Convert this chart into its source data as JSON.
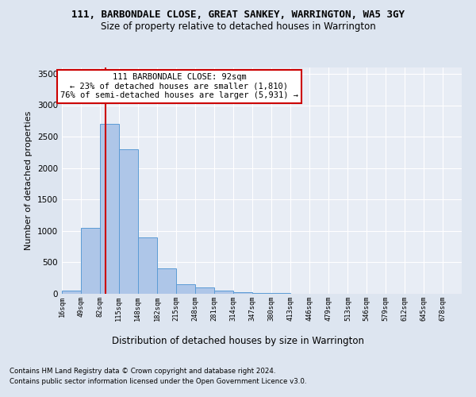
{
  "title1": "111, BARBONDALE CLOSE, GREAT SANKEY, WARRINGTON, WA5 3GY",
  "title2": "Size of property relative to detached houses in Warrington",
  "xlabel": "Distribution of detached houses by size in Warrington",
  "ylabel": "Number of detached properties",
  "bin_labels": [
    "16sqm",
    "49sqm",
    "82sqm",
    "115sqm",
    "148sqm",
    "182sqm",
    "215sqm",
    "248sqm",
    "281sqm",
    "314sqm",
    "347sqm",
    "380sqm",
    "413sqm",
    "446sqm",
    "479sqm",
    "513sqm",
    "546sqm",
    "579sqm",
    "612sqm",
    "645sqm",
    "678sqm"
  ],
  "bin_edges": [
    16,
    49,
    82,
    115,
    148,
    182,
    215,
    248,
    281,
    314,
    347,
    380,
    413,
    446,
    479,
    513,
    546,
    579,
    612,
    645,
    678
  ],
  "bar_heights": [
    50,
    1050,
    2700,
    2300,
    900,
    400,
    150,
    100,
    50,
    30,
    15,
    8,
    5,
    3,
    2,
    1,
    0,
    0,
    0,
    0
  ],
  "bar_color": "#aec6e8",
  "bar_edgecolor": "#5b9bd5",
  "red_line_x": 92,
  "annotation_text": "111 BARBONDALE CLOSE: 92sqm\n← 23% of detached houses are smaller (1,810)\n76% of semi-detached houses are larger (5,931) →",
  "annotation_box_color": "#ffffff",
  "annotation_box_edgecolor": "#cc0000",
  "ylim": [
    0,
    3600
  ],
  "yticks": [
    0,
    500,
    1000,
    1500,
    2000,
    2500,
    3000,
    3500
  ],
  "footer1": "Contains HM Land Registry data © Crown copyright and database right 2024.",
  "footer2": "Contains public sector information licensed under the Open Government Licence v3.0.",
  "bg_color": "#dde5f0",
  "plot_bg_color": "#e8edf5"
}
